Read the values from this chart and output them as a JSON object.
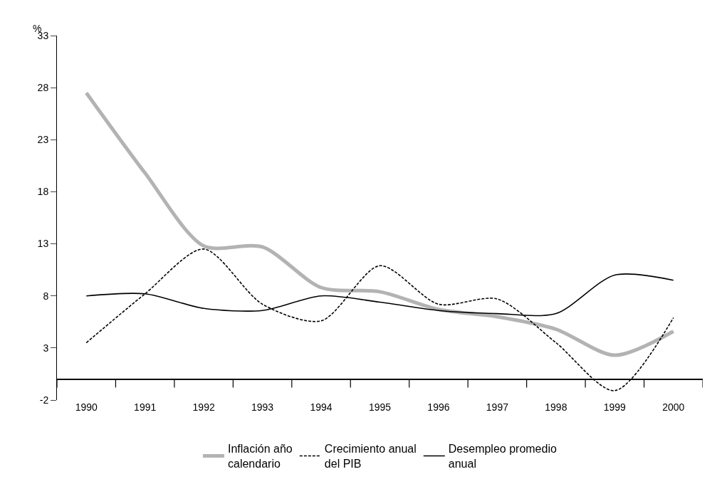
{
  "chart_data": {
    "type": "line",
    "ylabel": "%",
    "categories": [
      "1990",
      "1991",
      "1992",
      "1993",
      "1994",
      "1995",
      "1996",
      "1997",
      "1998",
      "1999",
      "2000"
    ],
    "series": [
      {
        "name": "Inflación año calendario",
        "color": "#b3b3b3",
        "line_style": "solid",
        "values": [
          27.5,
          19.8,
          12.8,
          12.7,
          8.8,
          8.4,
          6.7,
          6.0,
          4.8,
          2.3,
          4.6
        ]
      },
      {
        "name": "Crecimiento anual del PIB",
        "color": "#000000",
        "line_style": "dashed",
        "values": [
          3.5,
          8.2,
          12.5,
          7.2,
          5.6,
          10.9,
          7.2,
          7.7,
          3.5,
          -1.1,
          5.9
        ]
      },
      {
        "name": "Desempleo promedio anual",
        "color": "#000000",
        "line_style": "solid",
        "values": [
          8.0,
          8.2,
          6.8,
          6.6,
          8.0,
          7.4,
          6.6,
          6.3,
          6.3,
          10.0,
          9.5
        ]
      }
    ],
    "ylim": [
      -2,
      33
    ],
    "yticks": [
      -2,
      3,
      8,
      13,
      18,
      23,
      28,
      33
    ],
    "legend": "bottom",
    "marker": "none"
  }
}
